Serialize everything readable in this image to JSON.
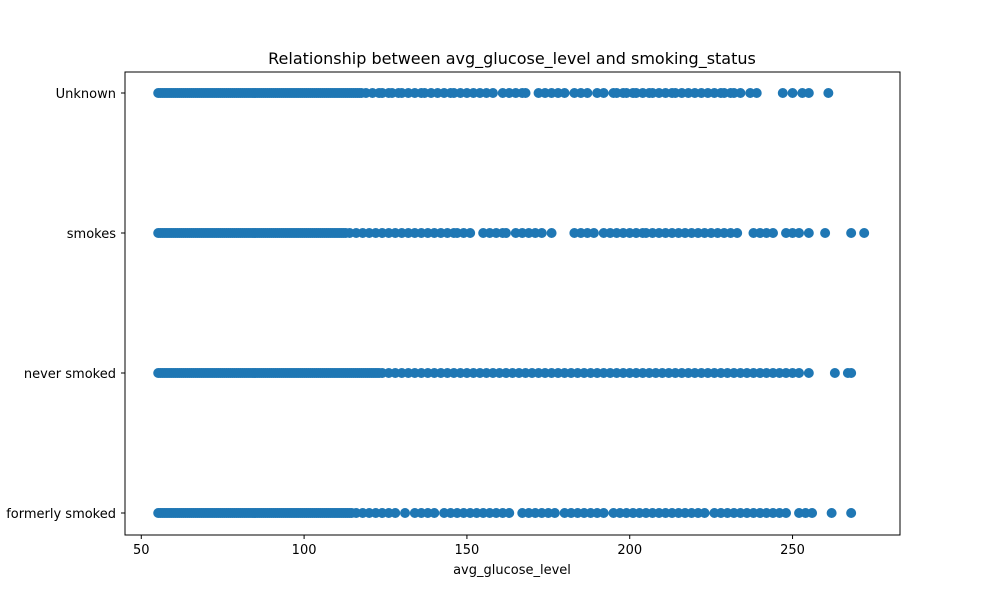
{
  "chart_data": {
    "type": "scatter",
    "title": "Relationship between avg_glucose_level and smoking_status",
    "xlabel": "avg_glucose_level",
    "ylabel": "",
    "xlim": [
      45,
      283
    ],
    "xticks": [
      50,
      100,
      150,
      200,
      250
    ],
    "categories": [
      "formerly smoked",
      "never smoked",
      "smokes",
      "Unknown"
    ],
    "grid": false,
    "marker_color": "#1f77b4",
    "series": [
      {
        "category": "Unknown",
        "dense_range": [
          55.2,
          118
        ],
        "x": [
          119,
          121,
          123,
          124,
          126,
          127,
          129,
          130,
          132,
          134,
          136,
          137,
          139,
          141,
          143,
          145,
          146,
          148,
          150,
          152,
          154,
          156,
          158,
          161,
          163,
          165,
          167,
          168,
          172,
          174,
          176,
          178,
          180,
          183,
          185,
          187,
          190,
          192,
          195,
          196,
          198,
          199,
          201,
          202,
          204,
          206,
          207,
          209,
          211,
          213,
          214,
          216,
          218,
          220,
          222,
          224,
          226,
          228,
          229,
          231,
          232,
          234,
          237,
          239,
          247,
          250,
          253,
          255,
          261
        ]
      },
      {
        "category": "smokes",
        "dense_range": [
          55.2,
          113
        ],
        "x": [
          114,
          116,
          118,
          120,
          122,
          124,
          126,
          128,
          130,
          132,
          134,
          136,
          138,
          140,
          142,
          144,
          146,
          147,
          149,
          151,
          155,
          157,
          159,
          161,
          162,
          165,
          167,
          169,
          171,
          173,
          176,
          183,
          185,
          187,
          189,
          192,
          194,
          196,
          198,
          200,
          202,
          204,
          205,
          207,
          209,
          211,
          213,
          215,
          217,
          219,
          221,
          223,
          225,
          227,
          229,
          231,
          233,
          238,
          240,
          242,
          244,
          248,
          250,
          252,
          255,
          260,
          268,
          272
        ]
      },
      {
        "category": "never smoked",
        "dense_range": [
          55.2,
          123
        ],
        "x": [
          124,
          126,
          128,
          130,
          132,
          134,
          136,
          138,
          140,
          142,
          144,
          146,
          148,
          150,
          152,
          154,
          156,
          158,
          160,
          162,
          164,
          166,
          168,
          170,
          172,
          174,
          176,
          178,
          180,
          182,
          184,
          186,
          188,
          190,
          192,
          194,
          196,
          198,
          200,
          202,
          204,
          206,
          208,
          210,
          212,
          214,
          216,
          218,
          220,
          222,
          224,
          226,
          228,
          230,
          232,
          234,
          236,
          238,
          240,
          242,
          244,
          246,
          248,
          250,
          252,
          255,
          263,
          267,
          268
        ]
      },
      {
        "category": "formerly smoked",
        "dense_range": [
          55.2,
          115
        ],
        "x": [
          116,
          118,
          120,
          122,
          124,
          126,
          128,
          131,
          134,
          136,
          138,
          140,
          143,
          145,
          147,
          149,
          151,
          153,
          155,
          157,
          159,
          161,
          163,
          167,
          169,
          171,
          173,
          175,
          177,
          180,
          182,
          184,
          186,
          188,
          190,
          192,
          195,
          197,
          199,
          201,
          203,
          205,
          207,
          209,
          211,
          213,
          215,
          217,
          219,
          221,
          223,
          226,
          228,
          230,
          232,
          234,
          236,
          238,
          240,
          242,
          244,
          246,
          248,
          252,
          254,
          256,
          262,
          268
        ]
      }
    ]
  }
}
